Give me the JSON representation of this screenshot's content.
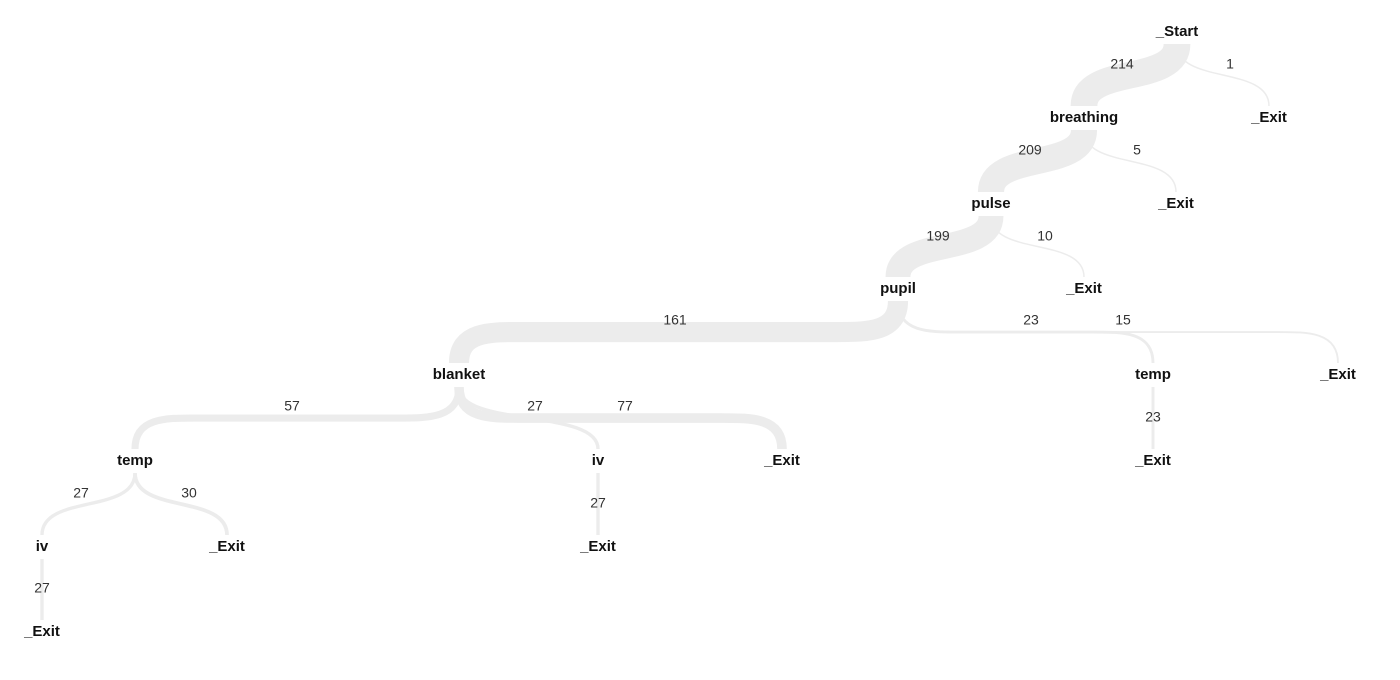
{
  "nodes": [
    {
      "label": "_Start"
    },
    {
      "label": "breathing"
    },
    {
      "label": "_Exit"
    },
    {
      "label": "pulse"
    },
    {
      "label": "_Exit"
    },
    {
      "label": "pupil"
    },
    {
      "label": "_Exit"
    },
    {
      "label": "blanket"
    },
    {
      "label": "temp"
    },
    {
      "label": "_Exit"
    },
    {
      "label": "temp"
    },
    {
      "label": "iv"
    },
    {
      "label": "_Exit"
    },
    {
      "label": "_Exit"
    },
    {
      "label": "iv"
    },
    {
      "label": "_Exit"
    },
    {
      "label": "_Exit"
    },
    {
      "label": "_Exit"
    }
  ],
  "edges": [
    {
      "source": 0,
      "target": 1,
      "count": 214
    },
    {
      "source": 0,
      "target": 2,
      "count": 1
    },
    {
      "source": 1,
      "target": 3,
      "count": 209
    },
    {
      "source": 1,
      "target": 4,
      "count": 5
    },
    {
      "source": 3,
      "target": 5,
      "count": 199
    },
    {
      "source": 3,
      "target": 6,
      "count": 10
    },
    {
      "source": 5,
      "target": 7,
      "count": 161
    },
    {
      "source": 5,
      "target": 8,
      "count": 23
    },
    {
      "source": 5,
      "target": 9,
      "count": 15
    },
    {
      "source": 7,
      "target": 10,
      "count": 57
    },
    {
      "source": 7,
      "target": 11,
      "count": 27
    },
    {
      "source": 7,
      "target": 12,
      "count": 77
    },
    {
      "source": 10,
      "target": 14,
      "count": 27
    },
    {
      "source": 10,
      "target": 15,
      "count": 30
    },
    {
      "source": 11,
      "target": 16,
      "count": 27
    },
    {
      "source": 8,
      "target": 13,
      "count": 23
    },
    {
      "source": 14,
      "target": 17,
      "count": 27
    }
  ]
}
